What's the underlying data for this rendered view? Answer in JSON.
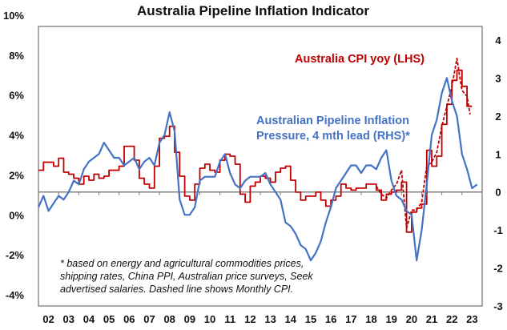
{
  "chart_data": {
    "type": "line",
    "title": "Australia Pipeline Inflation Indicator",
    "xlabel": "",
    "ylabel_left": "",
    "ylabel_right": "",
    "x_ticks": [
      "02",
      "03",
      "04",
      "05",
      "06",
      "07",
      "08",
      "09",
      "10",
      "11",
      "12",
      "13",
      "14",
      "15",
      "16",
      "17",
      "18",
      "19",
      "20",
      "21",
      "22",
      "23"
    ],
    "x_range": [
      2002.0,
      2024.0
    ],
    "y_left": {
      "range": [
        -4,
        10
      ],
      "ticks": [
        10,
        8,
        6,
        4,
        2,
        0,
        -2,
        -4
      ],
      "tick_labels": [
        "10%",
        "8%",
        "6%",
        "4%",
        "2%",
        "0%",
        "-2%",
        "-4%"
      ]
    },
    "y_right": {
      "range": [
        -3,
        4
      ],
      "ticks": [
        4,
        3,
        2,
        1,
        0,
        -1,
        -2,
        -3
      ],
      "tick_labels": [
        "4",
        "3",
        "2",
        "1",
        "0",
        "-1",
        "-2",
        "-3"
      ]
    },
    "grid": false,
    "zero_line_axis": "right",
    "series": [
      {
        "name": "Australia CPI yoy (LHS)",
        "axis": "left",
        "color": "#c00000",
        "style": "step",
        "x": [
          2002.0,
          2002.25,
          2002.5,
          2002.75,
          2003.0,
          2003.25,
          2003.5,
          2003.75,
          2004.0,
          2004.25,
          2004.5,
          2004.75,
          2005.0,
          2005.25,
          2005.5,
          2005.75,
          2006.0,
          2006.25,
          2006.5,
          2006.75,
          2007.0,
          2007.25,
          2007.5,
          2007.75,
          2008.0,
          2008.25,
          2008.5,
          2008.75,
          2009.0,
          2009.25,
          2009.5,
          2009.75,
          2010.0,
          2010.25,
          2010.5,
          2010.75,
          2011.0,
          2011.25,
          2011.5,
          2011.75,
          2012.0,
          2012.25,
          2012.5,
          2012.75,
          2013.0,
          2013.25,
          2013.5,
          2013.75,
          2014.0,
          2014.25,
          2014.5,
          2014.75,
          2015.0,
          2015.25,
          2015.5,
          2015.75,
          2016.0,
          2016.25,
          2016.5,
          2016.75,
          2017.0,
          2017.25,
          2017.5,
          2017.75,
          2018.0,
          2018.25,
          2018.5,
          2018.75,
          2019.0,
          2019.25,
          2019.5,
          2019.75,
          2020.0,
          2020.25,
          2020.5,
          2020.75,
          2021.0,
          2021.25,
          2021.5,
          2021.75,
          2022.0,
          2022.25,
          2022.5,
          2022.75,
          2023.0,
          2023.25
        ],
        "values": [
          2.8,
          3.2,
          3.2,
          3.0,
          3.4,
          2.7,
          2.6,
          2.4,
          2.1,
          2.5,
          2.3,
          2.6,
          2.4,
          2.5,
          2.8,
          2.8,
          3.0,
          4.0,
          4.0,
          3.3,
          2.4,
          2.1,
          1.9,
          3.0,
          4.4,
          4.5,
          5.0,
          3.7,
          2.5,
          1.5,
          1.3,
          2.1,
          2.9,
          3.1,
          2.8,
          2.7,
          3.3,
          3.6,
          3.5,
          3.1,
          1.6,
          1.2,
          2.0,
          2.2,
          2.5,
          2.4,
          2.2,
          2.7,
          2.9,
          3.0,
          2.3,
          1.7,
          1.3,
          1.5,
          1.5,
          1.7,
          1.3,
          1.0,
          1.3,
          1.5,
          2.1,
          1.9,
          1.8,
          1.9,
          1.9,
          2.1,
          2.1,
          1.8,
          1.3,
          1.6,
          1.7,
          1.8,
          2.2,
          -0.3,
          0.7,
          0.9,
          1.1,
          3.8,
          3.0,
          3.5,
          5.1,
          6.1,
          7.3,
          7.8,
          7.0,
          6.0
        ]
      },
      {
        "name": "Australia Monthly CPI (dashed)",
        "axis": "left",
        "color": "#c00000",
        "style": "dashed",
        "x": [
          2018.75,
          2019.0,
          2019.25,
          2019.5,
          2019.75,
          2020.0,
          2020.25,
          2020.5,
          2020.75,
          2021.0,
          2021.25,
          2021.5,
          2021.75,
          2022.0,
          2022.25,
          2022.5,
          2022.75,
          2022.9,
          2023.0,
          2023.25,
          2023.4
        ],
        "values": [
          2.0,
          1.6,
          1.4,
          1.8,
          2.1,
          2.8,
          -0.1,
          0.8,
          0.8,
          1.2,
          3.0,
          3.2,
          3.7,
          5.0,
          6.0,
          7.0,
          8.4,
          7.4,
          6.8,
          6.5,
          5.6
        ]
      },
      {
        "name": "Australian Pipeline Inflation Pressure, 4 mth lead (RHS)*",
        "axis": "right",
        "color": "#4472c4",
        "style": "solid",
        "x": [
          2002.0,
          2002.25,
          2002.5,
          2002.75,
          2003.0,
          2003.25,
          2003.5,
          2003.75,
          2004.0,
          2004.25,
          2004.5,
          2004.75,
          2005.0,
          2005.25,
          2005.5,
          2005.75,
          2006.0,
          2006.25,
          2006.5,
          2006.75,
          2007.0,
          2007.25,
          2007.5,
          2007.75,
          2008.0,
          2008.25,
          2008.5,
          2008.75,
          2009.0,
          2009.25,
          2009.5,
          2009.75,
          2010.0,
          2010.25,
          2010.5,
          2010.75,
          2011.0,
          2011.25,
          2011.5,
          2011.75,
          2012.0,
          2012.25,
          2012.5,
          2012.75,
          2013.0,
          2013.25,
          2013.5,
          2013.75,
          2014.0,
          2014.25,
          2014.5,
          2014.75,
          2015.0,
          2015.25,
          2015.5,
          2015.75,
          2016.0,
          2016.25,
          2016.5,
          2016.75,
          2017.0,
          2017.25,
          2017.5,
          2017.75,
          2018.0,
          2018.25,
          2018.5,
          2018.75,
          2019.0,
          2019.25,
          2019.5,
          2019.75,
          2020.0,
          2020.25,
          2020.5,
          2020.75,
          2021.0,
          2021.25,
          2021.5,
          2021.75,
          2022.0,
          2022.25,
          2022.5,
          2022.75,
          2023.0,
          2023.25,
          2023.5,
          2023.75
        ],
        "values": [
          -0.4,
          -0.1,
          -0.5,
          -0.3,
          -0.1,
          -0.2,
          0.0,
          0.3,
          0.2,
          0.6,
          0.8,
          0.9,
          1.0,
          1.3,
          1.1,
          0.9,
          0.9,
          0.7,
          0.8,
          0.9,
          0.6,
          0.8,
          0.9,
          0.7,
          1.3,
          1.5,
          2.1,
          1.6,
          -0.2,
          -0.6,
          -0.6,
          -0.4,
          0.3,
          0.4,
          0.4,
          0.4,
          0.8,
          1.0,
          0.5,
          0.2,
          0.1,
          0.3,
          0.4,
          0.4,
          0.4,
          0.5,
          0.2,
          0.0,
          -0.2,
          -0.8,
          -0.9,
          -1.1,
          -1.4,
          -1.5,
          -1.8,
          -1.6,
          -1.3,
          -0.8,
          -0.4,
          0.1,
          0.3,
          0.5,
          0.7,
          0.7,
          0.5,
          0.7,
          0.7,
          0.6,
          0.9,
          1.1,
          0.3,
          -0.1,
          -0.2,
          -0.5,
          -0.6,
          -1.8,
          -1.0,
          0.2,
          1.5,
          1.9,
          2.6,
          3.0,
          2.4,
          2.0,
          1.0,
          0.6,
          0.1,
          0.2
        ]
      }
    ],
    "legend": [
      {
        "label": "Australia CPI yoy (LHS)",
        "color": "#c00000",
        "placement": "top-right"
      },
      {
        "label_lines": [
          "Australian Pipeline Inflation",
          "Pressure, 4 mth lead (RHS)*"
        ],
        "color": "#4472c4",
        "placement": "upper-middle-right"
      }
    ],
    "annotation": [
      "* based on energy and agricultural commodities prices,",
      "shipping rates, China PPI, Australian price surveys, Seek",
      "advertised salaries. Dashed line shows Monthly CPI."
    ]
  }
}
